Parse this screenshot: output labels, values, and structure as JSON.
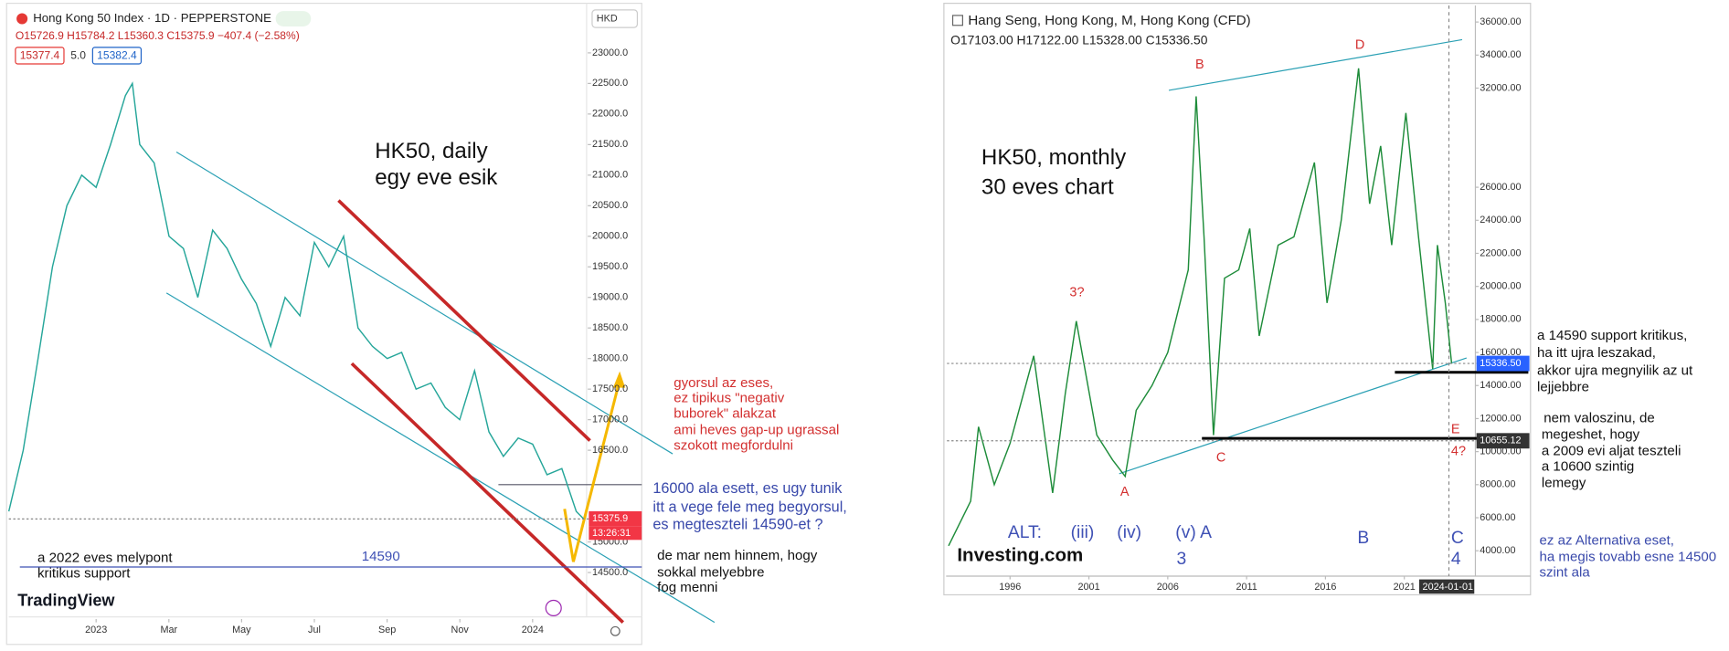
{
  "chart_data": [
    {
      "type": "line",
      "title": "Hong Kong 50 Index · 1D · PEPPERSTONE",
      "subtitle": "O15726.9 H15784.2 L15360.3 C15375.9 −407.4 (−2.58%)",
      "bid": "15377.4",
      "spread": "5.0",
      "ask": "15382.4",
      "currency": "HKD",
      "brand": "TradingView",
      "price_tag": {
        "value": 15375.9,
        "label": "15375.9"
      },
      "countdown": "13:26:31",
      "level": {
        "value": 14590,
        "label": "14590"
      },
      "color": "#26a69a",
      "x": [
        2022.8,
        2022.833,
        2022.867,
        2022.9,
        2022.933,
        2022.967,
        2023.0,
        2023.033,
        2023.067,
        2023.083,
        2023.1,
        2023.133,
        2023.167,
        2023.2,
        2023.233,
        2023.267,
        2023.3,
        2023.333,
        2023.367,
        2023.4,
        2023.433,
        2023.467,
        2023.5,
        2023.533,
        2023.567,
        2023.6,
        2023.633,
        2023.667,
        2023.7,
        2023.733,
        2023.767,
        2023.8,
        2023.833,
        2023.867,
        2023.9,
        2023.933,
        2023.967,
        2024.0,
        2024.033,
        2024.067,
        2024.1,
        2024.117
      ],
      "values": [
        15500,
        16500,
        18000,
        19500,
        20500,
        21000,
        20800,
        21500,
        22300,
        22500,
        21500,
        21200,
        20000,
        19800,
        19000,
        20100,
        19800,
        19300,
        18900,
        18200,
        19000,
        18700,
        19900,
        19500,
        20000,
        18500,
        18200,
        18000,
        18100,
        17500,
        17600,
        17200,
        17000,
        17800,
        16800,
        16400,
        16700,
        16600,
        16100,
        16200,
        15500,
        15376
      ],
      "xlim": [
        2022.8,
        2024.125
      ],
      "xticks": [
        {
          "value": 2023.0,
          "label": "2023"
        },
        {
          "value": 2023.1667,
          "label": "Mar"
        },
        {
          "value": 2023.3333,
          "label": "May"
        },
        {
          "value": 2023.5,
          "label": "Jul"
        },
        {
          "value": 2023.6667,
          "label": "Sep"
        },
        {
          "value": 2023.8333,
          "label": "Nov"
        },
        {
          "value": 2024.0,
          "label": "2024"
        }
      ],
      "ylim": [
        13400,
        23800
      ],
      "yticks": [
        {
          "value": 23000,
          "label": "23000.0"
        },
        {
          "value": 22500,
          "label": "22500.0"
        },
        {
          "value": 22000,
          "label": "22000.0"
        },
        {
          "value": 21500,
          "label": "21500.0"
        },
        {
          "value": 21000,
          "label": "21000.0"
        },
        {
          "value": 20500,
          "label": "20500.0"
        },
        {
          "value": 20000,
          "label": "20000.0"
        },
        {
          "value": 19500,
          "label": "19500.0"
        },
        {
          "value": 19000,
          "label": "19000.0"
        },
        {
          "value": 18500,
          "label": "18500.0"
        },
        {
          "value": 18000,
          "label": "18000.0"
        },
        {
          "value": 17500,
          "label": "17500.0"
        },
        {
          "value": 17000,
          "label": "17000.0"
        },
        {
          "value": 16500,
          "label": "16500.0"
        },
        {
          "value": 15000,
          "label": "15000.0"
        },
        {
          "value": 14500,
          "label": "14500.0"
        }
      ]
    },
    {
      "type": "line",
      "title": "Hang Seng, Hong Kong, M, Hong Kong (CFD)",
      "subtitle": "O17103.00 H17122.00 L15328.00 C15336.50",
      "brand": "Investing.com",
      "price_tag": {
        "value": 15336.5,
        "label": "15336.50"
      },
      "level_tag": {
        "value": 10655.12,
        "label": "10655.12"
      },
      "date_tag": "2024-01-01",
      "color": "#1e8c3a",
      "x": [
        1992.1,
        1993.5,
        1994.0,
        1995.0,
        1996.0,
        1997.5,
        1998.7,
        1999.5,
        2000.2,
        2001.5,
        2002.5,
        2003.3,
        2004.0,
        2005.0,
        2006.0,
        2007.3,
        2007.8,
        2008.3,
        2008.9,
        2009.6,
        2010.5,
        2011.2,
        2011.8,
        2013.0,
        2014.0,
        2015.3,
        2016.1,
        2017.0,
        2018.1,
        2018.8,
        2019.5,
        2020.2,
        2021.1,
        2021.9,
        2022.8,
        2023.1,
        2023.6,
        2024.0
      ],
      "values": [
        4300,
        7000,
        11500,
        8000,
        10500,
        15800,
        7500,
        13500,
        17900,
        11000,
        9500,
        8500,
        12500,
        14000,
        16000,
        21000,
        31500,
        23000,
        11000,
        20500,
        21000,
        23500,
        17000,
        22500,
        23000,
        27500,
        19000,
        24000,
        33200,
        25000,
        28500,
        22500,
        30500,
        23000,
        15000,
        22500,
        19000,
        15336
      ],
      "xlim": [
        1992,
        2025.5
      ],
      "xticks": [
        1996,
        2001,
        2006,
        2011,
        2016,
        2021
      ],
      "ylim": [
        2500,
        37000
      ],
      "yticks": [
        {
          "value": 36000,
          "label": "36000.00"
        },
        {
          "value": 34000,
          "label": "34000.00"
        },
        {
          "value": 32000,
          "label": "32000.00"
        },
        {
          "value": 26000,
          "label": "26000.00"
        },
        {
          "value": 24000,
          "label": "24000.00"
        },
        {
          "value": 22000,
          "label": "22000.00"
        },
        {
          "value": 20000,
          "label": "20000.00"
        },
        {
          "value": 18000,
          "label": "18000.00"
        },
        {
          "value": 16000,
          "label": "16000.00"
        },
        {
          "value": 14000,
          "label": "14000.00"
        },
        {
          "value": 12000,
          "label": "12000.00"
        },
        {
          "value": 10000,
          "label": "10000.00"
        },
        {
          "value": 8000,
          "label": "8000.00"
        },
        {
          "value": 6000,
          "label": "6000.00"
        },
        {
          "value": 4000,
          "label": "4000.00"
        }
      ]
    }
  ],
  "annotations": {
    "left_title": [
      "HK50, daily",
      "egy eve esik"
    ],
    "left_red": [
      "gyorsul az eses,",
      "ez tipikus \"negativ",
      "buborek\" alakzat",
      "ami heves gap-up ugrassal",
      "szokott megfordulni"
    ],
    "left_blue": [
      "16000 ala esett, es ugy tunik",
      "itt a vege fele meg begyorsul,",
      "es  megteszteli 14590-et  ?"
    ],
    "left_support": [
      "a 2022 eves melypont",
      "kritikus support"
    ],
    "left_black": [
      "de mar nem hinnem, hogy",
      "sokkal melyebbre",
      "fog menni"
    ],
    "right_title": [
      "HK50, monthly",
      "30 eves chart"
    ],
    "waves": [
      "B",
      "D",
      "3?",
      "A",
      "C",
      "E",
      "4?"
    ],
    "alt": [
      "ALT:",
      "(iii)",
      "(iv)",
      "(v) A",
      "3",
      "B",
      "C",
      "4"
    ],
    "right_black1": [
      "a 14590 support kritikus,",
      "ha itt ujra leszakad,",
      "akkor ujra megnyilik az ut",
      "lejjebbre"
    ],
    "right_black2": [
      "nem valoszinu, de",
      "megeshet, hogy",
      "a 2009 evi aljat teszteli",
      "a 10600 szintig",
      "lemegy"
    ],
    "right_blue": [
      "ez az Alternativa eset,",
      "ha megis tovabb esne 14500",
      "szint ala"
    ]
  }
}
